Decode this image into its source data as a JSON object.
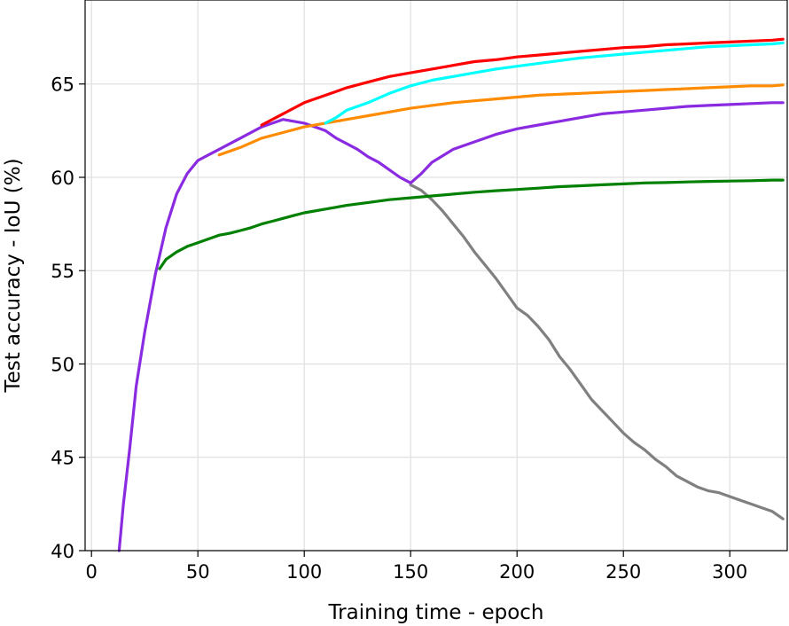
{
  "chart_data": {
    "type": "line",
    "title": "",
    "xlabel": "Training time - epoch",
    "ylabel": "Test accuracy - IoU (%)",
    "xlim": [
      -3,
      327
    ],
    "ylim": [
      40,
      69.5
    ],
    "xticks": [
      0,
      50,
      100,
      150,
      200,
      250,
      300
    ],
    "yticks": [
      40,
      45,
      50,
      55,
      60,
      65
    ],
    "xtick_labels": [
      "0",
      "50",
      "100",
      "150",
      "200",
      "250",
      "300"
    ],
    "ytick_labels": [
      "40",
      "45",
      "50",
      "55",
      "60",
      "65"
    ],
    "grid": true,
    "legend": "none",
    "series": [
      {
        "color": "#808080",
        "x": [
          150,
          155,
          160,
          165,
          170,
          175,
          180,
          185,
          190,
          195,
          200,
          205,
          210,
          215,
          220,
          225,
          230,
          235,
          240,
          245,
          250,
          255,
          260,
          265,
          270,
          275,
          280,
          285,
          290,
          295,
          300,
          305,
          310,
          315,
          320,
          325
        ],
        "y": [
          59.6,
          59.3,
          58.8,
          58.2,
          57.5,
          56.8,
          56.0,
          55.3,
          54.6,
          53.8,
          53.0,
          52.6,
          52.0,
          51.3,
          50.4,
          49.7,
          48.9,
          48.1,
          47.5,
          46.9,
          46.3,
          45.8,
          45.4,
          44.9,
          44.5,
          44.0,
          43.7,
          43.4,
          43.2,
          43.1,
          42.9,
          42.7,
          42.5,
          42.3,
          42.1,
          41.7
        ]
      },
      {
        "color": "#8a2be2",
        "x": [
          13,
          15,
          18,
          21,
          25,
          30,
          35,
          40,
          45,
          50,
          55,
          60,
          70,
          80,
          90,
          95,
          100,
          105,
          110,
          115,
          120,
          125,
          130,
          135,
          140,
          145,
          150,
          155,
          160,
          170,
          180,
          190,
          200,
          210,
          220,
          230,
          240,
          250,
          260,
          270,
          280,
          290,
          300,
          310,
          320,
          325
        ],
        "y": [
          40.0,
          42.5,
          45.5,
          48.8,
          51.7,
          54.8,
          57.3,
          59.1,
          60.2,
          60.9,
          61.2,
          61.5,
          62.1,
          62.7,
          63.1,
          63.0,
          62.9,
          62.7,
          62.5,
          62.1,
          61.8,
          61.5,
          61.1,
          60.8,
          60.4,
          60.0,
          59.7,
          60.2,
          60.8,
          61.5,
          61.9,
          62.3,
          62.6,
          62.8,
          63.0,
          63.2,
          63.4,
          63.5,
          63.6,
          63.7,
          63.8,
          63.85,
          63.9,
          63.95,
          64.0,
          64.0
        ]
      },
      {
        "color": "#ff8c00",
        "x": [
          60,
          70,
          80,
          90,
          100,
          110,
          120,
          130,
          140,
          150,
          160,
          170,
          180,
          190,
          200,
          210,
          220,
          230,
          240,
          250,
          260,
          270,
          280,
          290,
          300,
          310,
          320,
          325
        ],
        "y": [
          61.2,
          61.6,
          62.1,
          62.4,
          62.7,
          62.9,
          63.1,
          63.3,
          63.5,
          63.7,
          63.85,
          64.0,
          64.1,
          64.2,
          64.3,
          64.4,
          64.45,
          64.5,
          64.55,
          64.6,
          64.65,
          64.7,
          64.75,
          64.8,
          64.85,
          64.9,
          64.9,
          64.95
        ]
      },
      {
        "color": "#00ffff",
        "x": [
          110,
          115,
          120,
          130,
          140,
          150,
          160,
          170,
          180,
          190,
          200,
          210,
          220,
          230,
          240,
          250,
          260,
          270,
          280,
          290,
          300,
          310,
          320,
          325
        ],
        "y": [
          62.9,
          63.2,
          63.6,
          64.0,
          64.5,
          64.9,
          65.2,
          65.4,
          65.6,
          65.8,
          65.95,
          66.1,
          66.25,
          66.4,
          66.5,
          66.6,
          66.7,
          66.8,
          66.9,
          67.0,
          67.05,
          67.1,
          67.15,
          67.2
        ]
      },
      {
        "color": "#ff0000",
        "x": [
          80,
          90,
          100,
          110,
          120,
          130,
          140,
          150,
          160,
          170,
          180,
          190,
          200,
          210,
          220,
          230,
          240,
          250,
          260,
          270,
          280,
          290,
          300,
          310,
          320,
          325
        ],
        "y": [
          62.8,
          63.4,
          64.0,
          64.4,
          64.8,
          65.1,
          65.4,
          65.6,
          65.8,
          66.0,
          66.2,
          66.3,
          66.45,
          66.55,
          66.65,
          66.75,
          66.85,
          66.95,
          67.0,
          67.1,
          67.15,
          67.2,
          67.25,
          67.3,
          67.35,
          67.4
        ]
      },
      {
        "color": "#008000",
        "x": [
          32,
          35,
          40,
          45,
          50,
          55,
          60,
          65,
          70,
          75,
          80,
          85,
          90,
          95,
          100,
          110,
          120,
          130,
          140,
          150,
          160,
          170,
          180,
          190,
          200,
          210,
          220,
          230,
          240,
          250,
          260,
          270,
          280,
          290,
          300,
          310,
          320,
          325
        ],
        "y": [
          55.1,
          55.6,
          56.0,
          56.3,
          56.5,
          56.7,
          56.9,
          57.0,
          57.15,
          57.3,
          57.5,
          57.65,
          57.8,
          57.95,
          58.1,
          58.3,
          58.5,
          58.65,
          58.8,
          58.9,
          59.0,
          59.1,
          59.2,
          59.28,
          59.35,
          59.42,
          59.5,
          59.55,
          59.6,
          59.65,
          59.7,
          59.72,
          59.75,
          59.78,
          59.8,
          59.82,
          59.85,
          59.85
        ]
      }
    ]
  }
}
